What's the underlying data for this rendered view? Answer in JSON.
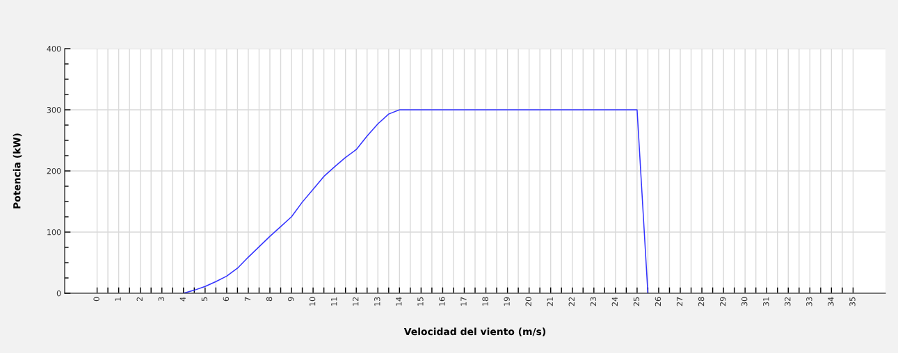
{
  "chart_data": {
    "type": "line",
    "xlabel": "Velocidad del viento (m/s)",
    "ylabel": "Potencia (kW)",
    "x": [
      4,
      4.5,
      5,
      5.5,
      6,
      6.5,
      7,
      7.5,
      8,
      8.5,
      9,
      9.5,
      10,
      10.5,
      11,
      11.5,
      12,
      12.5,
      13,
      13.5,
      14,
      25,
      25.5
    ],
    "series": [
      {
        "color": "#3333ff",
        "values": [
          0,
          5,
          11,
          19,
          28,
          41,
          59,
          76,
          93,
          109,
          125,
          149,
          170,
          191,
          207,
          222,
          235,
          257,
          277,
          293,
          300,
          300,
          0
        ]
      }
    ],
    "xlim": [
      -1.5,
      36.5
    ],
    "xticks": [
      0,
      {
        "value": 0.5,
        "label": null
      },
      1,
      {
        "value": 1.5,
        "label": null
      },
      2,
      {
        "value": 2.5,
        "label": null
      },
      3,
      {
        "value": 3.5,
        "label": null
      },
      4,
      {
        "value": 4.5,
        "label": null
      },
      5,
      {
        "value": 5.5,
        "label": null
      },
      6,
      {
        "value": 6.5,
        "label": null
      },
      7,
      {
        "value": 7.5,
        "label": null
      },
      8,
      {
        "value": 8.5,
        "label": null
      },
      9,
      {
        "value": 9.5,
        "label": null
      },
      10,
      {
        "value": 10.5,
        "label": null
      },
      11,
      {
        "value": 11.5,
        "label": null
      },
      12,
      {
        "value": 12.5,
        "label": null
      },
      13,
      {
        "value": 13.5,
        "label": null
      },
      14,
      {
        "value": 14.5,
        "label": null
      },
      15,
      {
        "value": 15.5,
        "label": null
      },
      16,
      {
        "value": 16.5,
        "label": null
      },
      17,
      {
        "value": 17.5,
        "label": null
      },
      18,
      {
        "value": 18.5,
        "label": null
      },
      19,
      {
        "value": 19.5,
        "label": null
      },
      20,
      {
        "value": 20.5,
        "label": null
      },
      21,
      {
        "value": 21.5,
        "label": null
      },
      22,
      {
        "value": 22.5,
        "label": null
      },
      23,
      {
        "value": 23.5,
        "label": null
      },
      24,
      {
        "value": 24.5,
        "label": null
      },
      25,
      {
        "value": 25.5,
        "label": null
      },
      26,
      {
        "value": 26.5,
        "label": null
      },
      27,
      {
        "value": 27.5,
        "label": null
      },
      28,
      {
        "value": 28.5,
        "label": null
      },
      29,
      {
        "value": 29.5,
        "label": null
      },
      30,
      {
        "value": 30.5,
        "label": null
      },
      31,
      {
        "value": 31.5,
        "label": null
      },
      32,
      {
        "value": 32.5,
        "label": null
      },
      33,
      {
        "value": 33.5,
        "label": null
      },
      34,
      {
        "value": 34.5,
        "label": null
      },
      35
    ],
    "ylim": [
      0,
      400
    ],
    "yticks": [
      0,
      {
        "value": 25,
        "label": null
      },
      {
        "value": 50,
        "label": null
      },
      {
        "value": 75,
        "label": null
      },
      100,
      {
        "value": 125,
        "label": null
      },
      {
        "value": 150,
        "label": null
      },
      {
        "value": 175,
        "label": null
      },
      200,
      {
        "value": 225,
        "label": null
      },
      {
        "value": 250,
        "label": null
      },
      {
        "value": 275,
        "label": null
      },
      300,
      {
        "value": 325,
        "label": null
      },
      {
        "value": 350,
        "label": null
      },
      {
        "value": 375,
        "label": null
      },
      400
    ],
    "grid": true,
    "marker": "none",
    "line_style": "solid"
  }
}
